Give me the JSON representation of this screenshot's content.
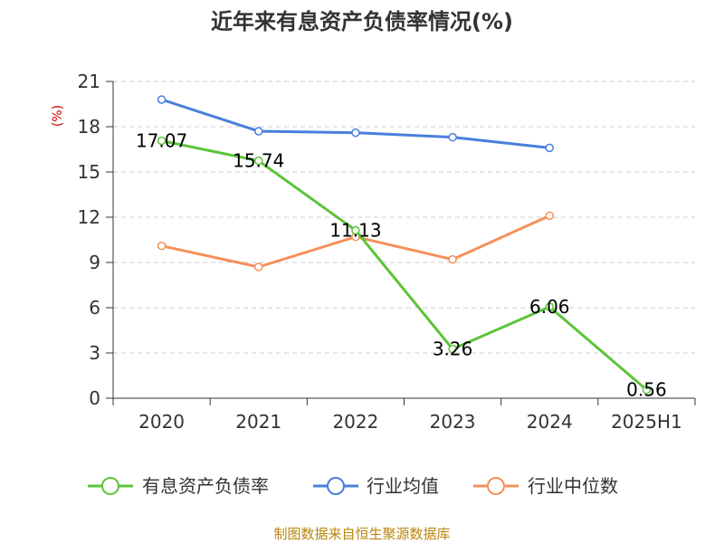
{
  "chart_data": {
    "type": "line",
    "title": "近年来有息资产负债率情况(%)",
    "ylabel": "(%)",
    "ylim": [
      0,
      21
    ],
    "yticks": [
      0,
      3,
      6,
      9,
      12,
      15,
      18,
      21
    ],
    "ytick_labels": [
      "0",
      "3",
      "6",
      "9",
      "12",
      "15",
      "18",
      "21"
    ],
    "categories": [
      "2020",
      "2021",
      "2022",
      "2023",
      "2024",
      "2025H1"
    ],
    "grid": true,
    "legend_position": "bottom",
    "series": [
      {
        "name": "有息资产负债率",
        "color": "#5cc43a",
        "values": [
          17.07,
          15.74,
          11.13,
          3.26,
          6.06,
          0.56
        ],
        "labels": [
          "17.07",
          "15.74",
          "11.13",
          "3.26",
          "6.06",
          "0.56"
        ]
      },
      {
        "name": "行业均值",
        "color": "#4a7fdb",
        "values": [
          19.8,
          17.7,
          17.6,
          17.3,
          16.6,
          null
        ]
      },
      {
        "name": "行业中位数",
        "color": "#f5905a",
        "values": [
          10.1,
          8.7,
          10.7,
          9.2,
          12.1,
          null
        ]
      }
    ],
    "source": "制图数据来自恒生聚源数据库"
  }
}
